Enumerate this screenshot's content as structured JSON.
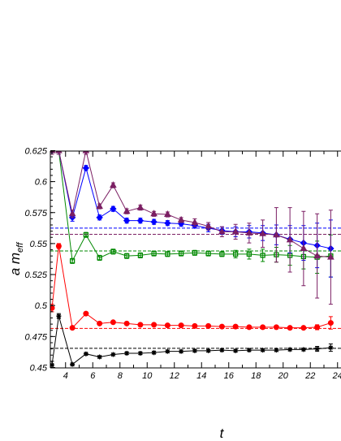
{
  "chart_data": {
    "type": "line",
    "xlabel": "t",
    "ylabel_main": "a m",
    "ylabel_sub": "eff",
    "xlim": [
      3,
      24
    ],
    "ylim": [
      0.45,
      0.625
    ],
    "x_ticks": [
      4,
      6,
      8,
      10,
      12,
      14,
      16,
      18,
      20,
      22,
      24
    ],
    "x_tick_labels": [
      "4",
      "6",
      "8",
      "10",
      "12",
      "14",
      "16",
      "18",
      "20",
      "22",
      "24"
    ],
    "y_ticks": [
      0.45,
      0.475,
      0.5,
      0.525,
      0.55,
      0.575,
      0.6,
      0.625
    ],
    "y_tick_labels": [
      "0.45",
      "0.475",
      "0.5",
      "0.525",
      "0.55",
      "0.575",
      "0.6",
      "0.625"
    ],
    "grid": false,
    "legend": "none",
    "series": [
      {
        "color": "#000000",
        "marker": "star",
        "fit": 0.4655,
        "points": [
          [
            3,
            0.452,
            0.003
          ],
          [
            3.5,
            0.4915,
            0.002
          ],
          [
            4.5,
            0.4525,
            0.001
          ],
          [
            5.5,
            0.461,
            0.001
          ],
          [
            6.5,
            0.4585,
            0.001
          ],
          [
            7.5,
            0.4605,
            0.001
          ],
          [
            8.5,
            0.4615,
            0.001
          ],
          [
            9.5,
            0.4615,
            0.001
          ],
          [
            10.5,
            0.462,
            0.001
          ],
          [
            11.5,
            0.463,
            0.001
          ],
          [
            12.5,
            0.463,
            0.001
          ],
          [
            13.5,
            0.4635,
            0.001
          ],
          [
            14.5,
            0.4635,
            0.001
          ],
          [
            15.5,
            0.464,
            0.001
          ],
          [
            16.5,
            0.4635,
            0.001
          ],
          [
            17.5,
            0.464,
            0.001
          ],
          [
            18.5,
            0.464,
            0.001
          ],
          [
            19.5,
            0.464,
            0.001
          ],
          [
            20.5,
            0.4645,
            0.001
          ],
          [
            21.5,
            0.4645,
            0.001
          ],
          [
            22.5,
            0.465,
            0.002
          ],
          [
            23.5,
            0.466,
            0.003
          ]
        ]
      },
      {
        "color": "#ff0000",
        "marker": "circle",
        "fit": 0.4815,
        "points": [
          [
            3,
            0.498,
            0.003
          ],
          [
            3.5,
            0.548,
            0.002
          ],
          [
            4.5,
            0.482,
            0.001
          ],
          [
            5.5,
            0.4935,
            0.001
          ],
          [
            6.5,
            0.4855,
            0.001
          ],
          [
            7.5,
            0.4865,
            0.001
          ],
          [
            8.5,
            0.4855,
            0.001
          ],
          [
            9.5,
            0.4845,
            0.001
          ],
          [
            10.5,
            0.4845,
            0.001
          ],
          [
            11.5,
            0.484,
            0.001
          ],
          [
            12.5,
            0.484,
            0.001
          ],
          [
            13.5,
            0.4835,
            0.001
          ],
          [
            14.5,
            0.4835,
            0.001
          ],
          [
            15.5,
            0.483,
            0.001
          ],
          [
            16.5,
            0.483,
            0.001
          ],
          [
            17.5,
            0.4825,
            0.001
          ],
          [
            18.5,
            0.4825,
            0.001
          ],
          [
            19.5,
            0.4825,
            0.001
          ],
          [
            20.5,
            0.482,
            0.001
          ],
          [
            21.5,
            0.482,
            0.001
          ],
          [
            22.5,
            0.4825,
            0.002
          ],
          [
            23.5,
            0.486,
            0.005
          ]
        ]
      },
      {
        "color": "#008800",
        "marker": "square",
        "fit": 0.544,
        "points": [
          [
            3,
            0.625,
            0.003
          ],
          [
            3.5,
            0.625,
            0.003
          ],
          [
            4.5,
            0.536,
            0.002
          ],
          [
            5.5,
            0.557,
            0.002
          ],
          [
            6.5,
            0.5385,
            0.002
          ],
          [
            7.5,
            0.5435,
            0.002
          ],
          [
            8.5,
            0.54,
            0.002
          ],
          [
            9.5,
            0.5405,
            0.002
          ],
          [
            10.5,
            0.542,
            0.002
          ],
          [
            11.5,
            0.5415,
            0.002
          ],
          [
            12.5,
            0.542,
            0.002
          ],
          [
            13.5,
            0.5425,
            0.002
          ],
          [
            14.5,
            0.542,
            0.002
          ],
          [
            15.5,
            0.5415,
            0.002
          ],
          [
            16.5,
            0.5415,
            0.003
          ],
          [
            17.5,
            0.5415,
            0.004
          ],
          [
            18.5,
            0.5405,
            0.005
          ],
          [
            19.5,
            0.541,
            0.006
          ],
          [
            20.5,
            0.5405,
            0.008
          ],
          [
            21.5,
            0.5395,
            0.01
          ],
          [
            22.5,
            0.539,
            0.013
          ],
          [
            23.5,
            0.54,
            0.017
          ]
        ]
      },
      {
        "color": "#0000ff",
        "marker": "diamond",
        "fit": 0.5625,
        "points": [
          [
            3,
            0.625,
            0.003
          ],
          [
            3.5,
            0.625,
            0.003
          ],
          [
            4.5,
            0.571,
            0.003
          ],
          [
            5.5,
            0.611,
            0.002
          ],
          [
            6.5,
            0.571,
            0.002
          ],
          [
            7.5,
            0.578,
            0.002
          ],
          [
            8.5,
            0.5685,
            0.002
          ],
          [
            9.5,
            0.5685,
            0.002
          ],
          [
            10.5,
            0.5675,
            0.002
          ],
          [
            11.5,
            0.5665,
            0.002
          ],
          [
            12.5,
            0.566,
            0.002
          ],
          [
            13.5,
            0.5645,
            0.002
          ],
          [
            14.5,
            0.5625,
            0.003
          ],
          [
            15.5,
            0.5605,
            0.003
          ],
          [
            16.5,
            0.5595,
            0.004
          ],
          [
            17.5,
            0.5595,
            0.005
          ],
          [
            18.5,
            0.5585,
            0.006
          ],
          [
            19.5,
            0.557,
            0.008
          ],
          [
            20.5,
            0.5535,
            0.011
          ],
          [
            21.5,
            0.5505,
            0.014
          ],
          [
            22.5,
            0.5485,
            0.018
          ],
          [
            23.5,
            0.546,
            0.023
          ]
        ]
      },
      {
        "color": "#7b1f63",
        "marker": "triangle",
        "fit": 0.5575,
        "points": [
          [
            3,
            0.625,
            0.003
          ],
          [
            3.5,
            0.625,
            0.003
          ],
          [
            4.5,
            0.574,
            0.003
          ],
          [
            5.5,
            0.625,
            0.003
          ],
          [
            6.5,
            0.58,
            0.002
          ],
          [
            7.5,
            0.597,
            0.002
          ],
          [
            8.5,
            0.576,
            0.002
          ],
          [
            9.5,
            0.579,
            0.002
          ],
          [
            10.5,
            0.574,
            0.002
          ],
          [
            11.5,
            0.5735,
            0.002
          ],
          [
            12.5,
            0.569,
            0.002
          ],
          [
            13.5,
            0.567,
            0.003
          ],
          [
            14.5,
            0.564,
            0.003
          ],
          [
            15.5,
            0.5595,
            0.004
          ],
          [
            16.5,
            0.5595,
            0.006
          ],
          [
            17.5,
            0.5585,
            0.008
          ],
          [
            18.5,
            0.558,
            0.011
          ],
          [
            19.5,
            0.557,
            0.022
          ],
          [
            20.5,
            0.553,
            0.026
          ],
          [
            21.5,
            0.546,
            0.03
          ],
          [
            22.5,
            0.54,
            0.034
          ],
          [
            23.5,
            0.539,
            0.038
          ]
        ]
      }
    ]
  }
}
